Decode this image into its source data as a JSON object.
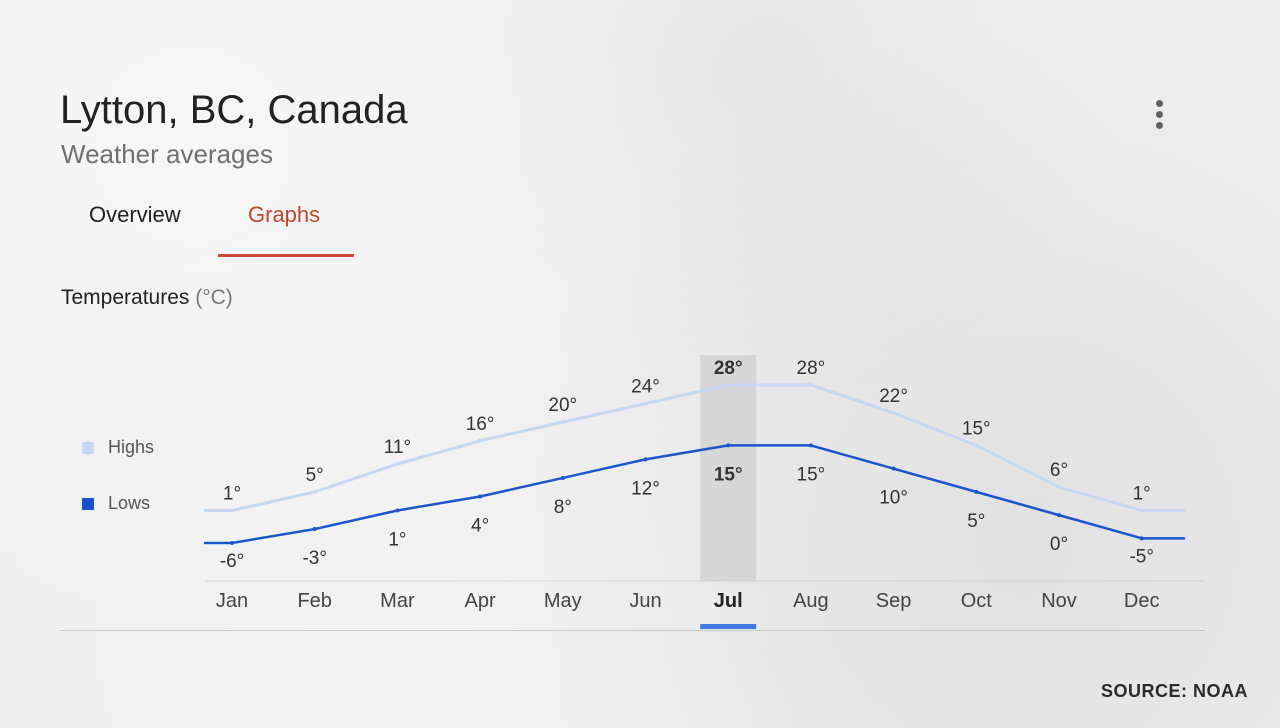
{
  "header": {
    "title": "Lytton, BC, Canada",
    "subtitle": "Weather averages"
  },
  "menu": {
    "icon": "more-vertical-icon"
  },
  "tabs": [
    {
      "label": "Overview",
      "active": false
    },
    {
      "label": "Graphs",
      "active": true
    }
  ],
  "section": {
    "title": "Temperatures",
    "unit": "(°C)"
  },
  "legend": [
    {
      "label": "Highs",
      "color": "#c6d7f1"
    },
    {
      "label": "Lows",
      "color": "#1a56c9"
    }
  ],
  "source": "SOURCE: NOAA",
  "chart_data": {
    "type": "line",
    "categories": [
      "Jan",
      "Feb",
      "Mar",
      "Apr",
      "May",
      "Jun",
      "Jul",
      "Aug",
      "Sep",
      "Oct",
      "Nov",
      "Dec"
    ],
    "series": [
      {
        "name": "Highs",
        "values": [
          1,
          5,
          11,
          16,
          20,
          24,
          28,
          28,
          22,
          15,
          6,
          1
        ],
        "color": "#c6d7f1"
      },
      {
        "name": "Lows",
        "values": [
          -6,
          -3,
          1,
          4,
          8,
          12,
          15,
          15,
          10,
          5,
          0,
          -5
        ],
        "color": "#1a56c9"
      }
    ],
    "selected_category": "Jul",
    "label_suffix": "°",
    "ylim": [
      -10,
      32
    ],
    "grid": false,
    "legend_position": "left"
  }
}
